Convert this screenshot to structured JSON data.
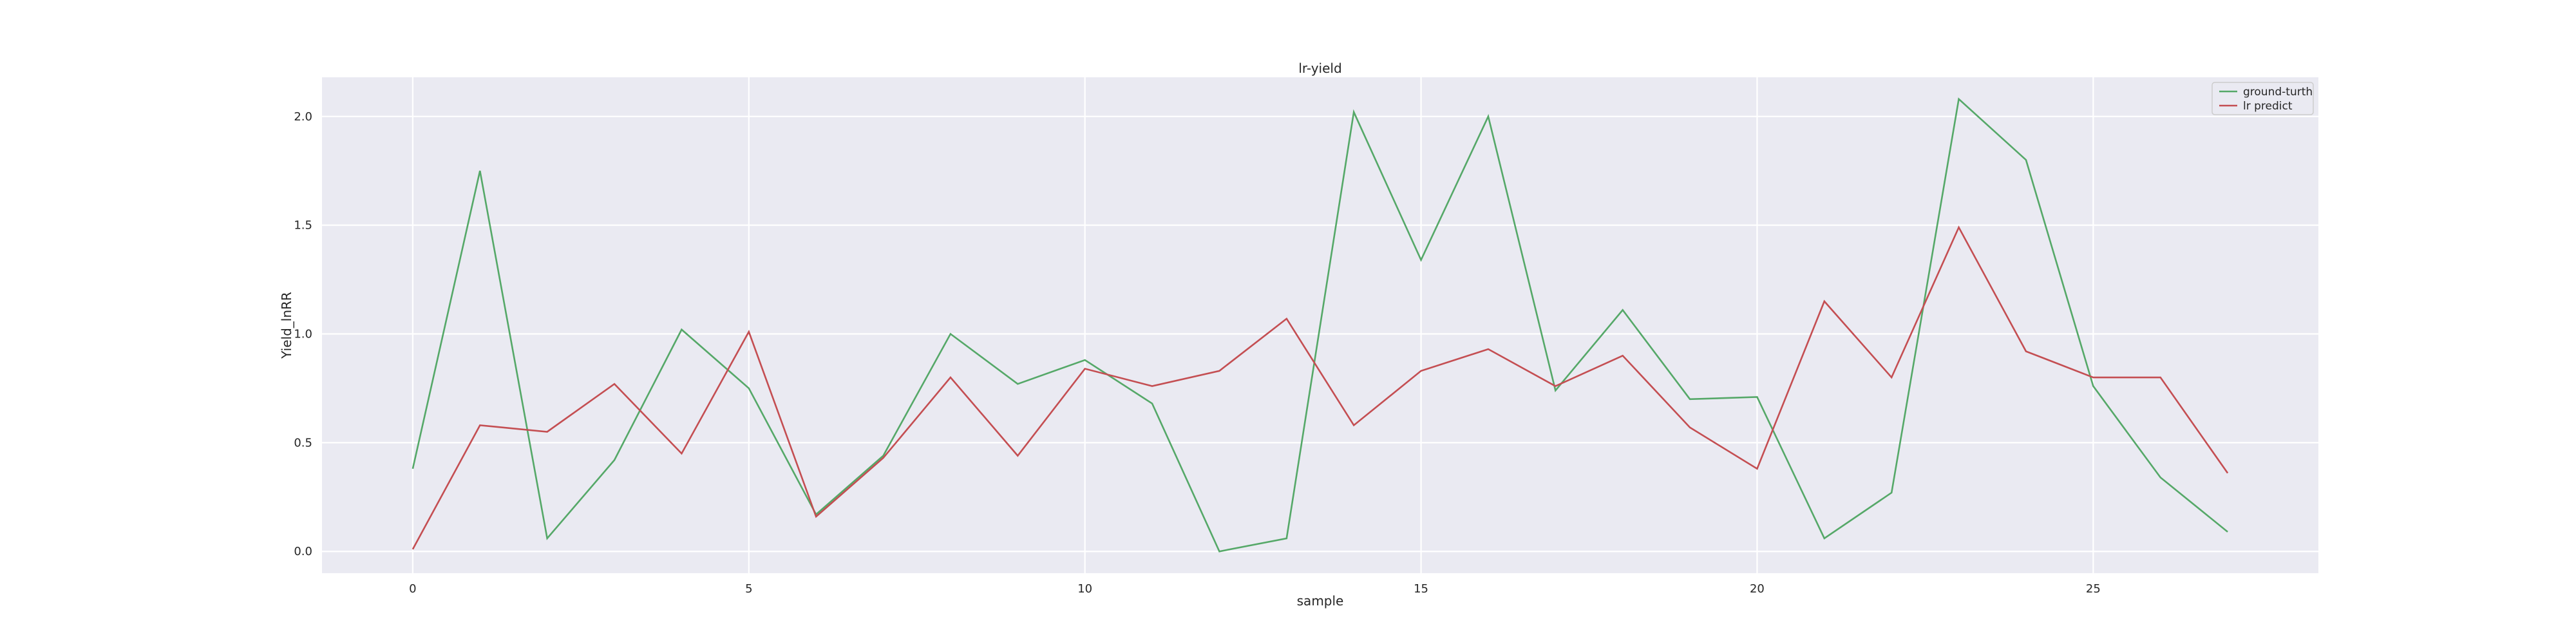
{
  "chart_data": {
    "type": "line",
    "title": "lr-yield",
    "xlabel": "sample",
    "ylabel": "Yield_lnRR",
    "xlim": [
      -1.35,
      28.35
    ],
    "ylim": [
      -0.1,
      2.18
    ],
    "xticks": [
      0,
      5,
      10,
      15,
      20,
      25
    ],
    "yticks": [
      0.0,
      0.5,
      1.0,
      1.5,
      2.0
    ],
    "xtick_labels": [
      "0",
      "5",
      "10",
      "15",
      "20",
      "25"
    ],
    "ytick_labels": [
      "0.0",
      "0.5",
      "1.0",
      "1.5",
      "2.0"
    ],
    "grid": true,
    "legend_position": "top-right",
    "x": [
      0,
      1,
      2,
      3,
      4,
      5,
      6,
      7,
      8,
      9,
      10,
      11,
      12,
      13,
      14,
      15,
      16,
      17,
      18,
      19,
      20,
      21,
      22,
      23,
      24,
      25,
      26,
      27
    ],
    "series": [
      {
        "name": "ground-turth",
        "color": "#55a868",
        "values": [
          0.38,
          1.75,
          0.06,
          0.42,
          1.02,
          0.75,
          0.17,
          0.44,
          1.0,
          0.77,
          0.88,
          0.68,
          0.0,
          0.06,
          2.02,
          1.34,
          2.0,
          0.74,
          1.11,
          0.7,
          0.71,
          0.06,
          0.27,
          2.08,
          1.8,
          0.76,
          0.34,
          0.09
        ]
      },
      {
        "name": "lr predict",
        "color": "#c44e52",
        "values": [
          0.01,
          0.58,
          0.55,
          0.77,
          0.45,
          1.01,
          0.16,
          0.43,
          0.8,
          0.44,
          0.84,
          0.76,
          0.83,
          1.07,
          0.58,
          0.83,
          0.93,
          0.76,
          0.9,
          0.57,
          0.38,
          1.15,
          0.8,
          1.49,
          0.92,
          0.8,
          0.8,
          0.36
        ]
      }
    ]
  }
}
